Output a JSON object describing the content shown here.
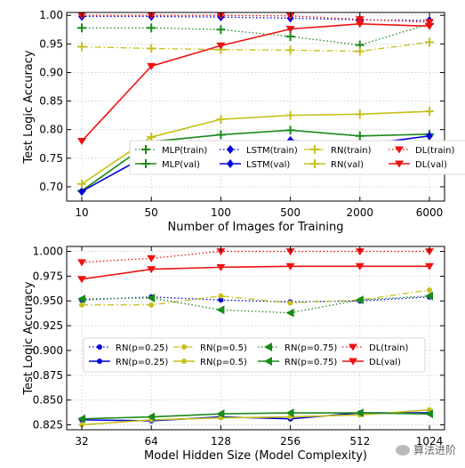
{
  "chart_data": [
    {
      "type": "line",
      "ylabel": "Test Logic Accuracy",
      "xlabel": "Number of Images for Training",
      "categories": [
        "10",
        "50",
        "100",
        "500",
        "2000",
        "6000"
      ],
      "ylim": [
        0.675,
        1.005
      ],
      "yticks": [
        "0.70",
        "0.75",
        "0.80",
        "0.85",
        "0.90",
        "0.95",
        "1.00"
      ],
      "grid": true,
      "legend": "lower-center, 2 rows x 4 columns",
      "series": [
        {
          "name": "MLP(train)",
          "color": "#1a8a1a",
          "style": "dotted",
          "marker": "plus",
          "values": [
            0.978,
            0.978,
            0.975,
            0.963,
            0.948,
            0.985
          ]
        },
        {
          "name": "MLP(val)",
          "color": "#1a8a1a",
          "style": "solid",
          "marker": "plus",
          "values": [
            0.693,
            0.779,
            0.791,
            0.799,
            0.789,
            0.792
          ]
        },
        {
          "name": "LSTM(train)",
          "color": "#0000dd",
          "style": "dotted",
          "marker": "diamond",
          "values": [
            0.998,
            0.998,
            0.997,
            0.995,
            0.992,
            0.991
          ]
        },
        {
          "name": "LSTM(val)",
          "color": "#0000dd",
          "style": "solid",
          "marker": "diamond",
          "values": [
            0.692,
            0.759,
            0.761,
            0.781,
            0.773,
            0.789
          ]
        },
        {
          "name": "RN(train)",
          "color": "#c6c01a",
          "style": "dashdot",
          "marker": "plus",
          "values": [
            0.945,
            0.942,
            0.94,
            0.939,
            0.937,
            0.953
          ]
        },
        {
          "name": "RN(val)",
          "color": "#c6c01a",
          "style": "solid",
          "marker": "plus",
          "values": [
            0.705,
            0.787,
            0.818,
            0.825,
            0.827,
            0.832
          ]
        },
        {
          "name": "DL(train)",
          "color": "#ee1111",
          "style": "dotted",
          "marker": "triangle-down",
          "values": [
            1.0,
            1.0,
            1.0,
            0.999,
            0.993,
            0.988
          ]
        },
        {
          "name": "DL(val)",
          "color": "#ee1111",
          "style": "solid",
          "marker": "triangle-down",
          "values": [
            0.78,
            0.911,
            0.947,
            0.976,
            0.985,
            0.981
          ]
        }
      ]
    },
    {
      "type": "line",
      "ylabel": "Test Logic Accuracy",
      "xlabel": "Model Hidden Size (Model Complexity)",
      "categories": [
        "32",
        "64",
        "128",
        "256",
        "512",
        "1024"
      ],
      "ylim": [
        0.82,
        1.005
      ],
      "yticks": [
        "0.825",
        "0.850",
        "0.875",
        "0.900",
        "0.925",
        "0.950",
        "0.975",
        "1.000"
      ],
      "grid": true,
      "legend": "lower-center, 2 rows x 4 columns",
      "series": [
        {
          "name": "RN(p=0.25)",
          "color": "#0000dd",
          "style": "dotted",
          "marker": "circle",
          "values": [
            0.951,
            0.954,
            0.951,
            0.949,
            0.95,
            0.954
          ]
        },
        {
          "name": "RN(p=0.25)",
          "color": "#0000dd",
          "style": "solid",
          "marker": "circle",
          "values": [
            0.83,
            0.829,
            0.833,
            0.831,
            0.837,
            0.837
          ]
        },
        {
          "name": "RN(p=0.5)",
          "color": "#c6c01a",
          "style": "dashdot",
          "marker": "circle",
          "values": [
            0.946,
            0.946,
            0.955,
            0.948,
            0.951,
            0.961
          ]
        },
        {
          "name": "RN(p=0.5)",
          "color": "#c6c01a",
          "style": "solid",
          "marker": "circle",
          "values": [
            0.825,
            0.83,
            0.832,
            0.833,
            0.835,
            0.84
          ]
        },
        {
          "name": "RN(p=0.75)",
          "color": "#1a8a1a",
          "style": "dotted",
          "marker": "triangle-left",
          "values": [
            0.952,
            0.953,
            0.941,
            0.938,
            0.951,
            0.955
          ]
        },
        {
          "name": "RN(p=0.75)",
          "color": "#1a8a1a",
          "style": "solid",
          "marker": "triangle-left",
          "values": [
            0.831,
            0.833,
            0.836,
            0.837,
            0.837,
            0.836
          ]
        },
        {
          "name": "DL(train)",
          "color": "#ee1111",
          "style": "dotted",
          "marker": "triangle-down",
          "values": [
            0.989,
            0.993,
            1.0,
            1.0,
            1.0,
            1.0
          ]
        },
        {
          "name": "DL(val)",
          "color": "#ee1111",
          "style": "solid",
          "marker": "triangle-down",
          "values": [
            0.972,
            0.982,
            0.984,
            0.985,
            0.985,
            0.985
          ]
        }
      ]
    }
  ],
  "watermark": {
    "text": "算法进阶"
  }
}
